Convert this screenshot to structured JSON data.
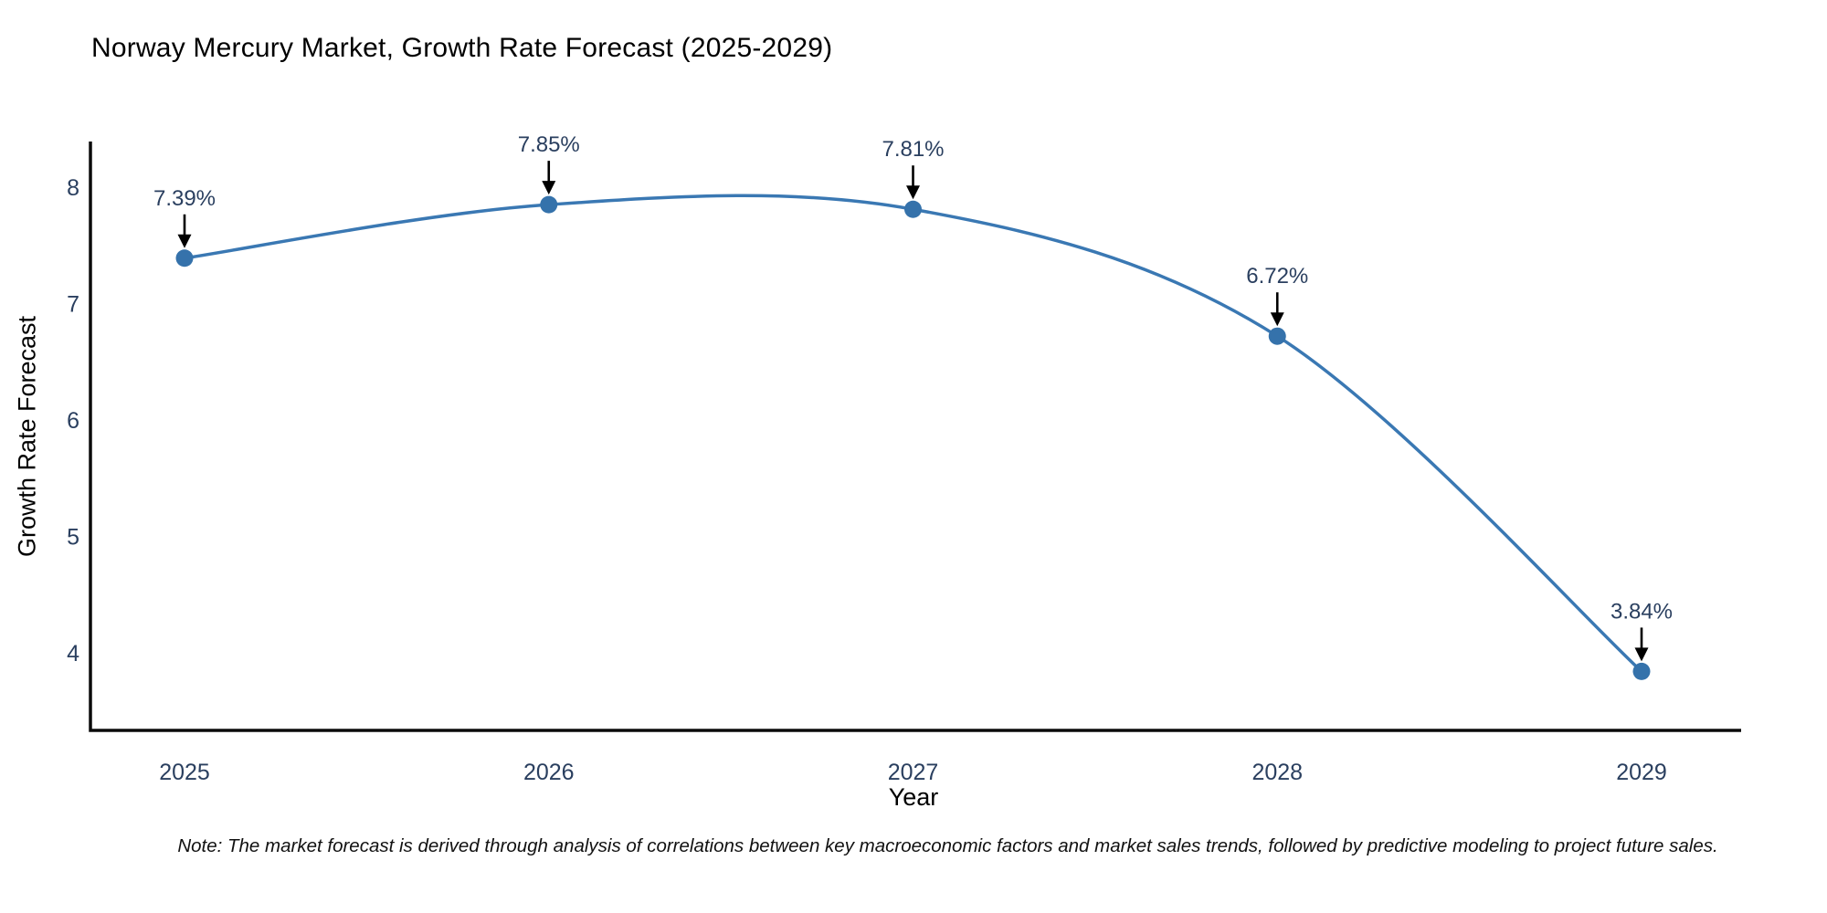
{
  "note": "Note: The market forecast is derived through analysis of correlations between key macroeconomic factors and market sales trends, followed by predictive modeling to project future sales.",
  "colors": {
    "line": "#3a78b3",
    "marker": "#3572ab",
    "axis": "#0b0b0b",
    "text": "#2a3f5f",
    "annotation_arrow": "#000000",
    "background": "#ffffff"
  },
  "chart_data": {
    "type": "line",
    "title": "Norway Mercury Market, Growth Rate Forecast (2025-2029)",
    "xlabel": "Year",
    "ylabel": "Growth Rate Forecast",
    "categories": [
      "2025",
      "2026",
      "2027",
      "2028",
      "2029"
    ],
    "values": [
      7.39,
      7.85,
      7.81,
      6.72,
      3.84
    ],
    "point_labels": [
      "7.39%",
      "7.85%",
      "7.81%",
      "6.72%",
      "3.84%"
    ],
    "yticks": [
      4,
      5,
      6,
      7,
      8
    ],
    "ylim": [
      3.3,
      8.5
    ],
    "grid": false,
    "legend": "none",
    "line_shape": "spline",
    "markers": true,
    "annotations": "value labels with down arrows above each point"
  }
}
